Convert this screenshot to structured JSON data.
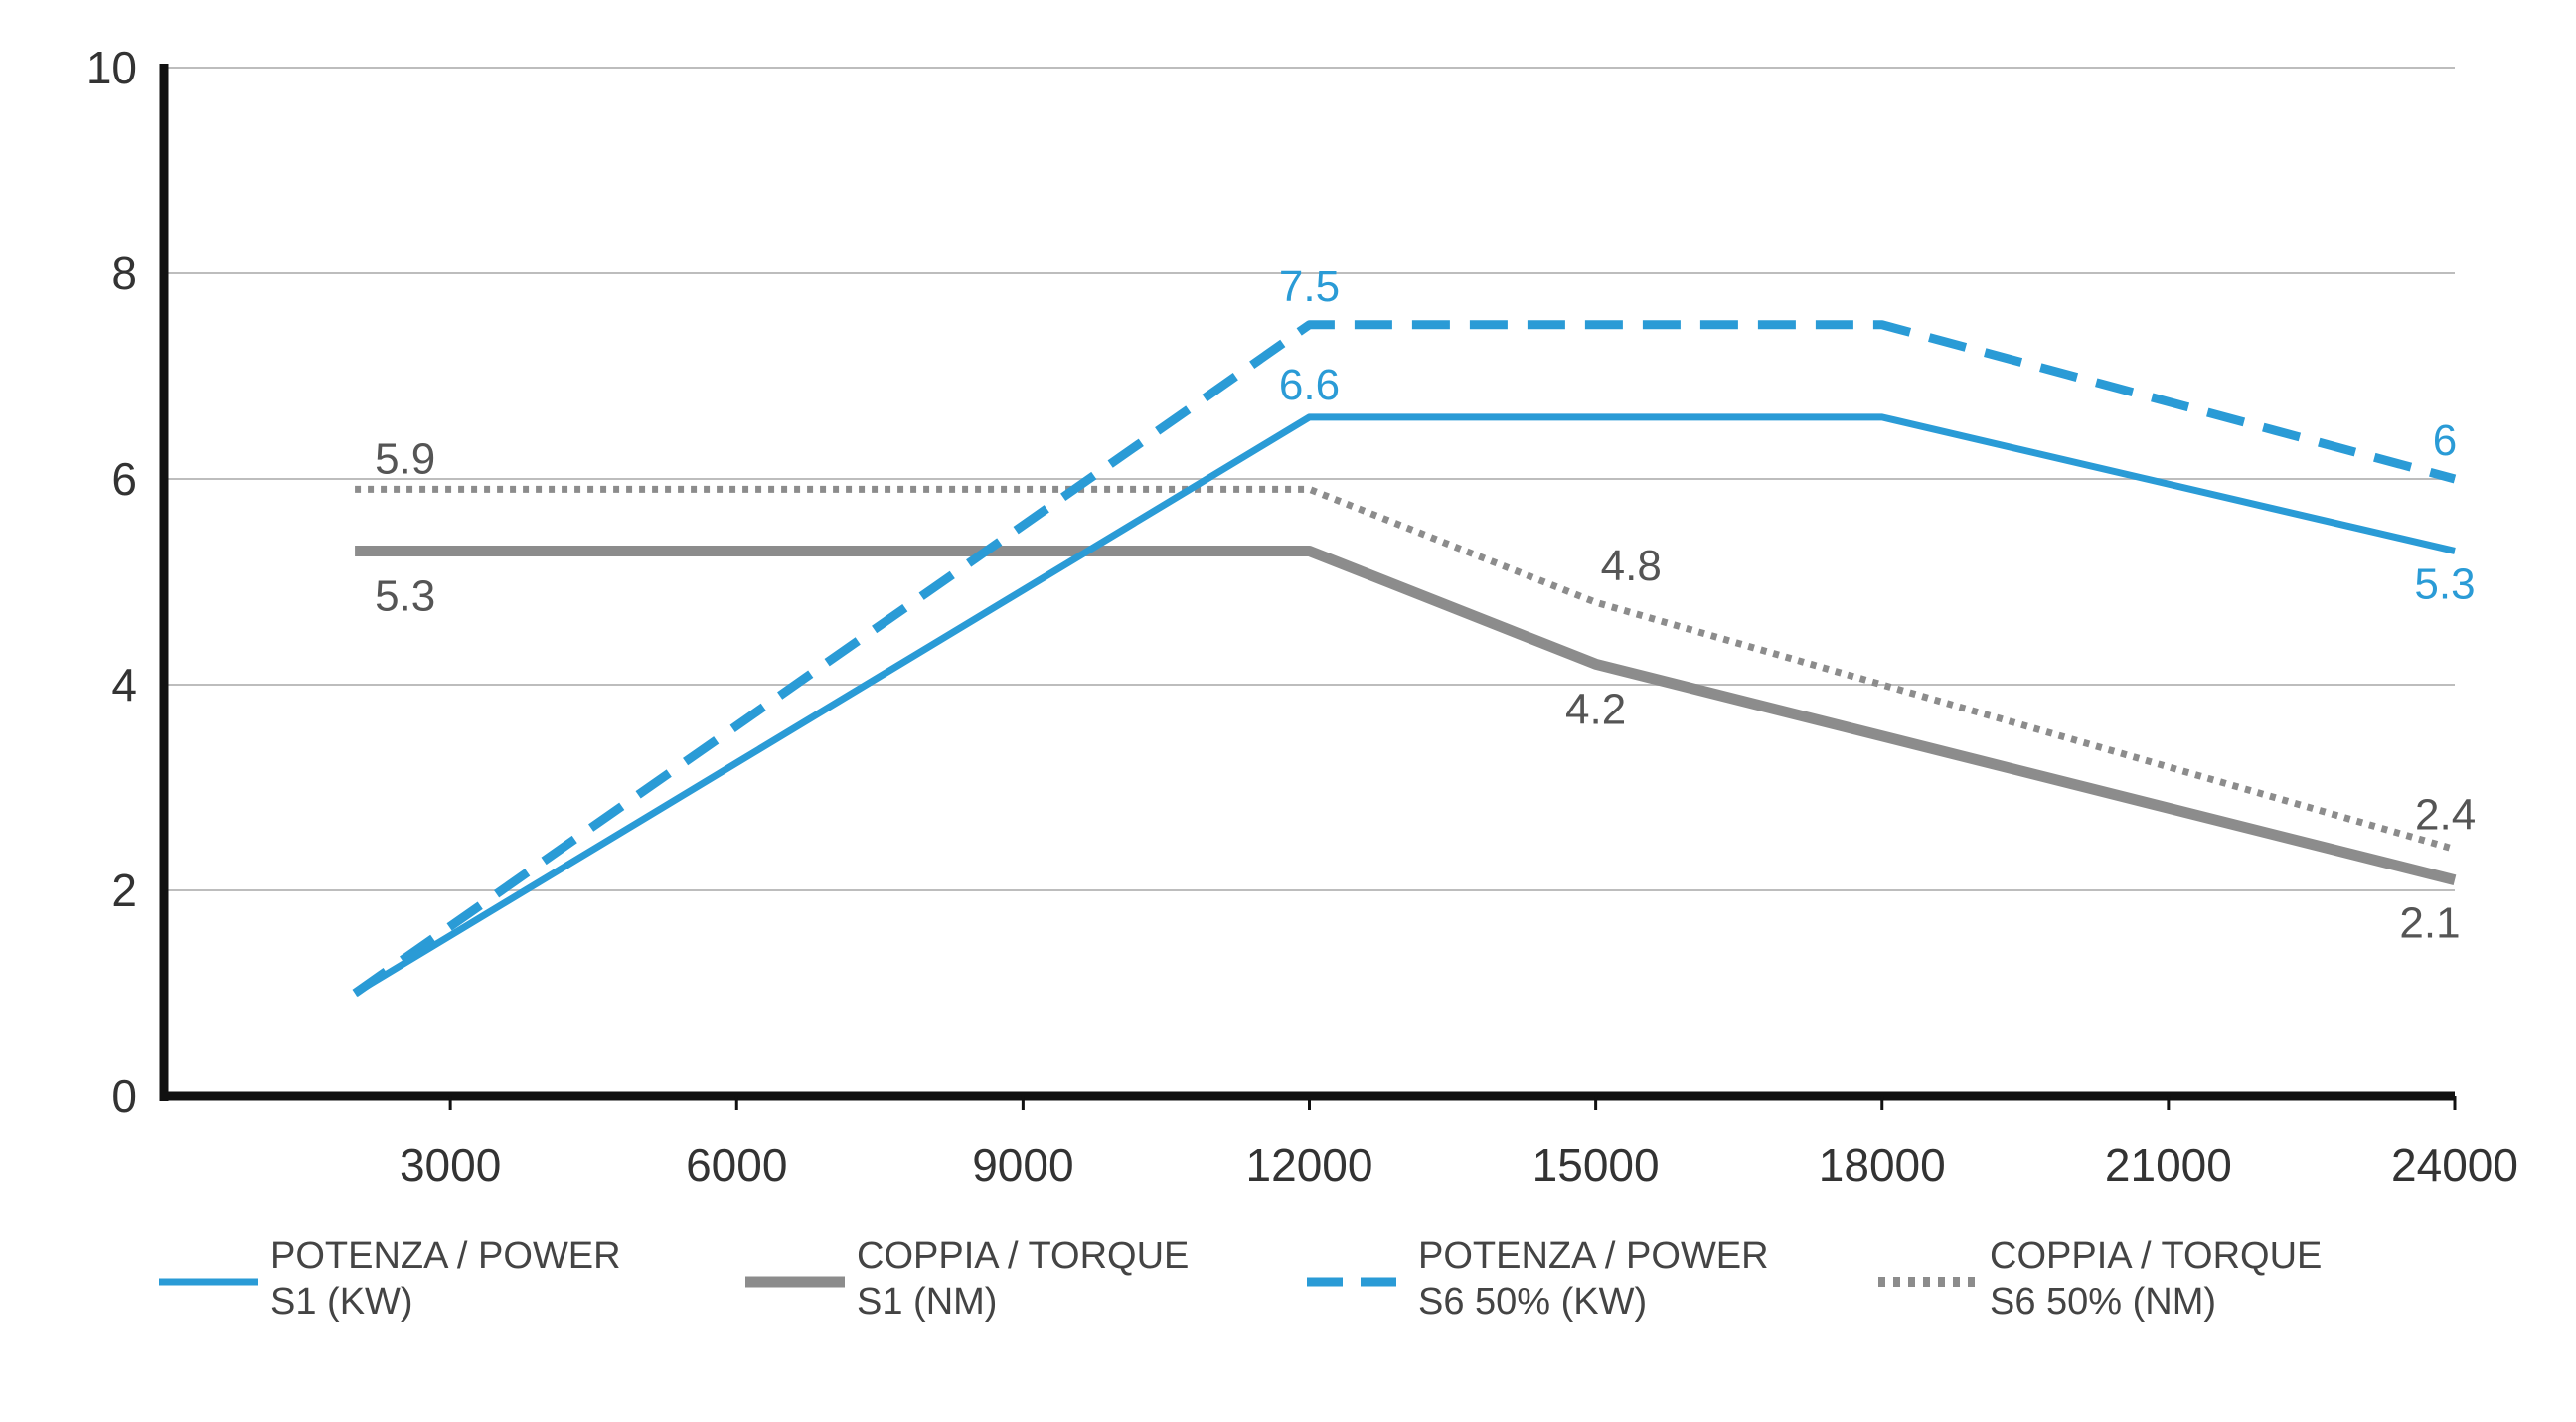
{
  "chart_data": {
    "type": "line",
    "x": [
      2000,
      12000,
      15000,
      18000,
      24000
    ],
    "xlim": [
      0,
      24000
    ],
    "ylim": [
      0,
      10
    ],
    "x_ticks": [
      "3000",
      "6000",
      "9000",
      "12000",
      "15000",
      "18000",
      "21000",
      "24000"
    ],
    "y_ticks": [
      "0",
      "2",
      "4",
      "6",
      "8",
      "10"
    ],
    "grid": "horizontal",
    "legend_position": "bottom",
    "series": [
      {
        "name": "POTENZA / POWER S1 (KW)",
        "legend_line1": "POTENZA / POWER",
        "legend_line2": "S1 (KW)",
        "style": "solid",
        "color": "#2a9bd6",
        "x": [
          2000,
          12000,
          18000,
          24000
        ],
        "values": [
          1.0,
          6.6,
          6.6,
          5.3
        ],
        "labels": [
          {
            "x": 12000,
            "y": 6.6,
            "text": "6.6"
          },
          {
            "x": 24000,
            "y": 5.3,
            "text": "5.3"
          }
        ]
      },
      {
        "name": "COPPIA / TORQUE S1 (NM)",
        "legend_line1": "COPPIA / TORQUE",
        "legend_line2": "S1 (NM)",
        "style": "solid-thick",
        "color": "#8c8c8c",
        "x": [
          2000,
          12000,
          15000,
          24000
        ],
        "values": [
          5.3,
          5.3,
          4.2,
          2.1
        ],
        "labels": [
          {
            "x": 2000,
            "y": 5.3,
            "text": "5.3"
          },
          {
            "x": 15000,
            "y": 4.2,
            "text": "4.2"
          },
          {
            "x": 24000,
            "y": 2.1,
            "text": "2.1"
          }
        ]
      },
      {
        "name": "POTENZA / POWER S6 50% (KW)",
        "legend_line1": "POTENZA / POWER",
        "legend_line2": "S6 50% (KW)",
        "style": "dashed",
        "color": "#2a9bd6",
        "x": [
          2000,
          12000,
          18000,
          24000
        ],
        "values": [
          1.0,
          7.5,
          7.5,
          6.0
        ],
        "labels": [
          {
            "x": 12000,
            "y": 7.5,
            "text": "7.5"
          },
          {
            "x": 24000,
            "y": 6.0,
            "text": "6"
          }
        ]
      },
      {
        "name": "COPPIA / TORQUE S6 50% (NM)",
        "legend_line1": "COPPIA / TORQUE",
        "legend_line2": "S6 50% (NM)",
        "style": "dotted",
        "color": "#8c8c8c",
        "x": [
          2000,
          12000,
          15000,
          24000
        ],
        "values": [
          5.9,
          5.9,
          4.8,
          2.4
        ],
        "labels": [
          {
            "x": 2000,
            "y": 5.9,
            "text": "5.9"
          },
          {
            "x": 15000,
            "y": 4.8,
            "text": "4.8"
          },
          {
            "x": 24000,
            "y": 2.4,
            "text": "2.4"
          }
        ]
      }
    ]
  }
}
